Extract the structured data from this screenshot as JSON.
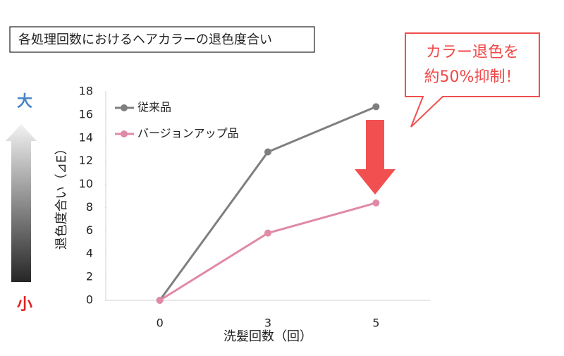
{
  "chart_data": {
    "type": "line",
    "title": "各処理回数におけるヘアカラーの退色度合い",
    "annotation_lines": [
      "カラー退色を",
      "約50%抑制！"
    ],
    "scale_top_label": "大",
    "scale_bottom_label": "小",
    "x_label": "洗髪回数（回）",
    "y_label": "退色度合い（⊿E）",
    "categories": [
      "0",
      "3",
      "5"
    ],
    "series": [
      {
        "name": "従来品",
        "color": "#7f7f7f",
        "values": [
          0,
          12.8,
          16.7
        ]
      },
      {
        "name": "バージョンアップ品",
        "color": "#e08aa5",
        "values": [
          0,
          5.8,
          8.4
        ]
      }
    ],
    "ylim": [
      0,
      18
    ],
    "yticks": [
      0,
      2,
      4,
      6,
      8,
      10,
      12,
      14,
      16,
      18
    ],
    "grid": false
  }
}
